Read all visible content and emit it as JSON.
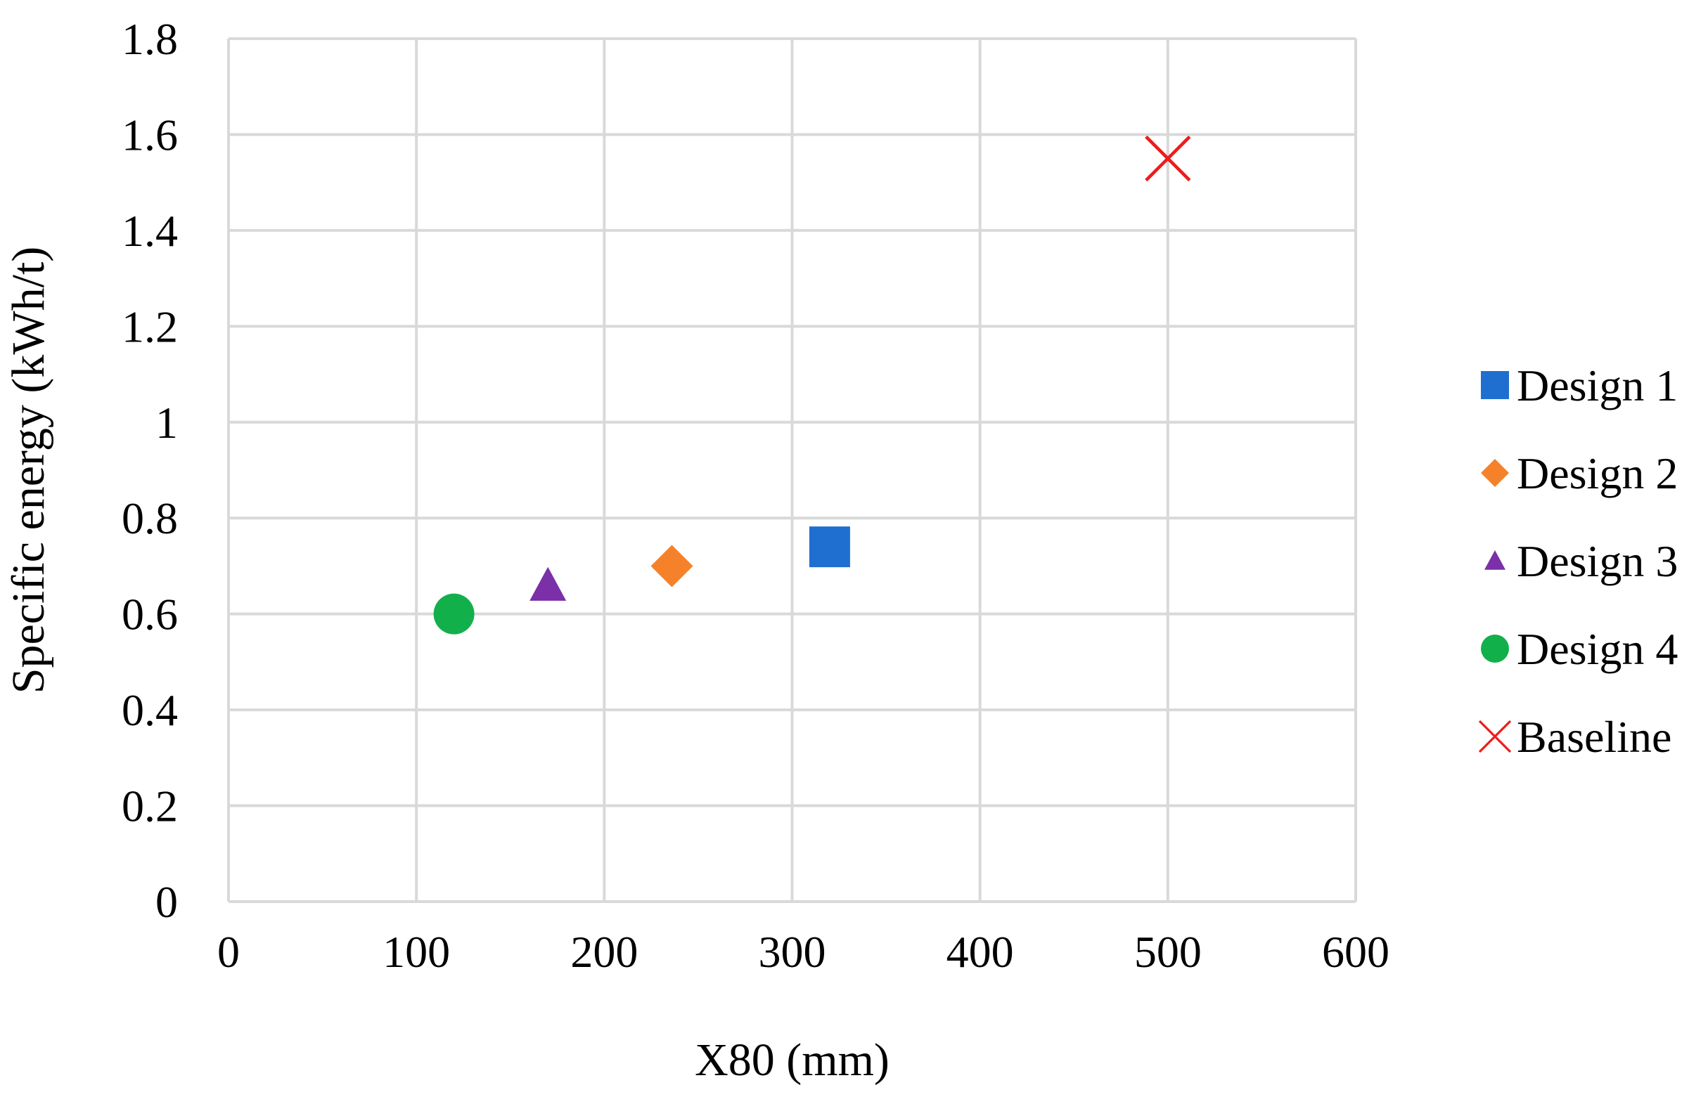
{
  "chart_data": {
    "type": "scatter",
    "title": "",
    "xlabel": "X80 (mm)",
    "ylabel": "Specific energy (kWh/t)",
    "xlim": [
      0,
      600
    ],
    "ylim": [
      0,
      1.8
    ],
    "xticks": [
      0,
      100,
      200,
      300,
      400,
      500,
      600
    ],
    "yticks": [
      0,
      0.2,
      0.4,
      0.6,
      0.8,
      1,
      1.2,
      1.4,
      1.6,
      1.8
    ],
    "xtick_labels": [
      "0",
      "100",
      "200",
      "300",
      "400",
      "500",
      "600"
    ],
    "ytick_labels": [
      "0",
      "0.2",
      "0.4",
      "0.6",
      "0.8",
      "1",
      "1.2",
      "1.4",
      "1.6",
      "1.8"
    ],
    "grid": true,
    "legend_position": "right",
    "series": [
      {
        "name": "Design 1",
        "marker": "square",
        "color": "#1f6fd1",
        "x": [
          320
        ],
        "y": [
          0.74
        ]
      },
      {
        "name": "Design 2",
        "marker": "diamond",
        "color": "#f5822a",
        "x": [
          236
        ],
        "y": [
          0.7
        ]
      },
      {
        "name": "Design 3",
        "marker": "triangle",
        "color": "#7b2fa8",
        "x": [
          170
        ],
        "y": [
          0.66
        ]
      },
      {
        "name": "Design 4",
        "marker": "circle",
        "color": "#12b04a",
        "x": [
          120
        ],
        "y": [
          0.6
        ]
      },
      {
        "name": "Baseline",
        "marker": "x",
        "color": "#ee1c1c",
        "x": [
          500
        ],
        "y": [
          1.55
        ]
      }
    ]
  }
}
